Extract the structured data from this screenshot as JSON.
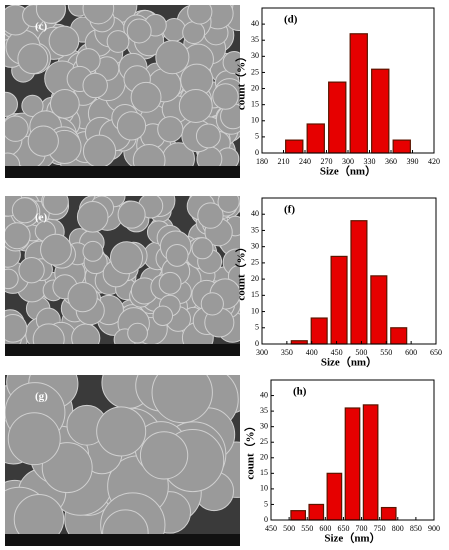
{
  "images": [
    {
      "label": "(c)"
    },
    {
      "label": "(e)"
    },
    {
      "label": "(g)"
    }
  ],
  "chart_data": [
    {
      "type": "histogram",
      "panel_label": "(d)",
      "x_label": "Size（nm）",
      "y_label": "count（%）",
      "bins": [
        210,
        240,
        270,
        300,
        330,
        360,
        390
      ],
      "values": [
        4,
        9,
        22,
        37,
        26,
        4
      ],
      "color": "#e60000",
      "edge_color": "#5a1500",
      "xlim": [
        180,
        420
      ],
      "xticks": [
        180,
        210,
        240,
        270,
        300,
        330,
        360,
        390,
        420
      ],
      "ylim": [
        0,
        45
      ],
      "yticks": [
        0,
        5,
        10,
        15,
        20,
        25,
        30,
        35,
        40
      ]
    },
    {
      "type": "histogram",
      "panel_label": "(f)",
      "x_label": "Size（nm）",
      "y_label": "count（%）",
      "bins": [
        355,
        395,
        435,
        475,
        515,
        555,
        595
      ],
      "values": [
        1,
        8,
        27,
        38,
        21,
        5
      ],
      "color": "#e60000",
      "edge_color": "#5a1500",
      "xlim": [
        300,
        650
      ],
      "xticks": [
        300,
        350,
        400,
        450,
        500,
        550,
        600,
        650
      ],
      "ylim": [
        0,
        45
      ],
      "yticks": [
        0,
        5,
        10,
        15,
        20,
        25,
        30,
        35,
        40
      ]
    },
    {
      "type": "histogram",
      "panel_label": "(h)",
      "x_label": "Size（nm）",
      "y_label": "count（%）",
      "bins": [
        500,
        550,
        600,
        650,
        700,
        750,
        800
      ],
      "values": [
        3,
        5,
        15,
        36,
        37,
        4
      ],
      "color": "#e60000",
      "edge_color": "#5a1500",
      "xlim": [
        450,
        900
      ],
      "xticks": [
        450,
        500,
        550,
        600,
        650,
        700,
        750,
        800,
        850,
        900
      ],
      "ylim": [
        0,
        45
      ],
      "yticks": [
        0,
        5,
        10,
        15,
        20,
        25,
        30,
        35,
        40
      ]
    }
  ]
}
